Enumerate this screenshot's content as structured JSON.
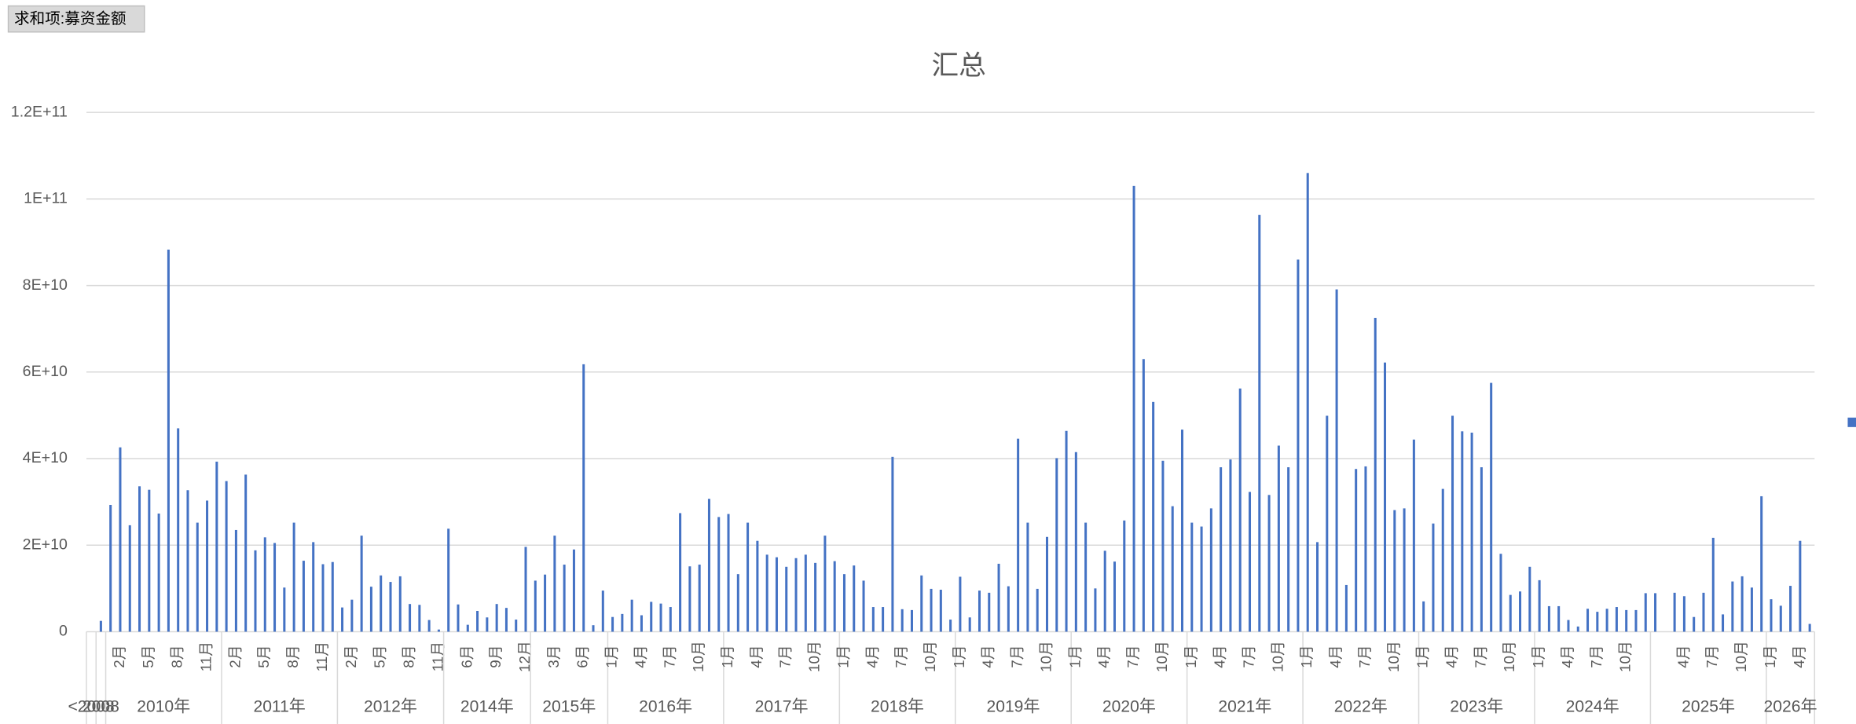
{
  "pivot_button": "求和项:募资金额",
  "chart_data": {
    "type": "bar",
    "title": "汇总",
    "color": "#4472c4",
    "grid": true,
    "ylim": [
      0,
      120000000000.0
    ],
    "yticks": [
      0,
      {
        "value": 20000000000.0,
        "label": "2E+10"
      },
      {
        "value": 40000000000.0,
        "label": "4E+10"
      },
      {
        "value": 60000000000.0,
        "label": "6E+10"
      },
      {
        "value": 80000000000.0,
        "label": "8E+10"
      },
      {
        "value": 100000000000.0,
        "label": "1E+11"
      },
      {
        "value": 120000000000.0,
        "label": "1.2E+11"
      }
    ],
    "groups": [
      {
        "label": "<2008",
        "categories": [
          null
        ],
        "values": [
          0
        ]
      },
      {
        "label": "2008",
        "categories": [
          null
        ],
        "values": [
          2500000000.0
        ]
      },
      {
        "label": "2010年",
        "categories": [
          null,
          "2月",
          null,
          null,
          "5月",
          null,
          null,
          "8月",
          null,
          null,
          "11月",
          null
        ],
        "values": [
          29300000000.0,
          42600000000.0,
          24600000000.0,
          33600000000.0,
          32800000000.0,
          27300000000.0,
          88300000000.0,
          47000000000.0,
          32700000000.0,
          25200000000.0,
          30300000000.0,
          39300000000.0
        ]
      },
      {
        "label": "2011年",
        "categories": [
          null,
          "2月",
          null,
          null,
          "5月",
          null,
          null,
          "8月",
          null,
          null,
          "11月",
          null
        ],
        "values": [
          34800000000.0,
          23500000000.0,
          36300000000.0,
          18800000000.0,
          21800000000.0,
          20500000000.0,
          10200000000.0,
          25200000000.0,
          16400000000.0,
          20700000000.0,
          15600000000.0,
          16100000000.0
        ]
      },
      {
        "label": "2012年",
        "categories": [
          null,
          "2月",
          null,
          null,
          "5月",
          null,
          null,
          "8月",
          null,
          null,
          "11月"
        ],
        "values": [
          5600000000.0,
          7400000000.0,
          22200000000.0,
          10400000000.0,
          13000000000.0,
          11500000000.0,
          12800000000.0,
          6400000000.0,
          6200000000.0,
          2700000000.0,
          500000000.0
        ]
      },
      {
        "label": "2014年",
        "categories": [
          null,
          null,
          "6月",
          null,
          null,
          "9月",
          null,
          null,
          "12月"
        ],
        "values": [
          23800000000.0,
          6300000000.0,
          1600000000.0,
          4800000000.0,
          3300000000.0,
          6400000000.0,
          5500000000.0,
          2800000000.0,
          19600000000.0
        ]
      },
      {
        "label": "2015年",
        "categories": [
          null,
          null,
          "3月",
          null,
          null,
          "6月",
          null,
          null
        ],
        "values": [
          11800000000.0,
          13200000000.0,
          22200000000.0,
          15500000000.0,
          19000000000.0,
          61800000000.0,
          1500000000.0,
          9500000000.0
        ]
      },
      {
        "label": "2016年",
        "categories": [
          "1月",
          null,
          null,
          "4月",
          null,
          null,
          "7月",
          null,
          null,
          "10月",
          null,
          null
        ],
        "values": [
          3400000000.0,
          4100000000.0,
          7400000000.0,
          3800000000.0,
          6900000000.0,
          6500000000.0,
          5700000000.0,
          27400000000.0,
          15100000000.0,
          15500000000.0,
          30700000000.0,
          26500000000.0
        ]
      },
      {
        "label": "2017年",
        "categories": [
          "1月",
          null,
          null,
          "4月",
          null,
          null,
          "7月",
          null,
          null,
          "10月",
          null,
          null
        ],
        "values": [
          27200000000.0,
          13300000000.0,
          25200000000.0,
          21000000000.0,
          17800000000.0,
          17200000000.0,
          15000000000.0,
          17000000000.0,
          17800000000.0,
          15900000000.0,
          22200000000.0,
          16300000000.0
        ]
      },
      {
        "label": "2018年",
        "categories": [
          "1月",
          null,
          null,
          "4月",
          null,
          null,
          "7月",
          null,
          null,
          "10月",
          null,
          null
        ],
        "values": [
          13300000000.0,
          15300000000.0,
          11800000000.0,
          5700000000.0,
          5700000000.0,
          40400000000.0,
          5200000000.0,
          5000000000.0,
          13000000000.0,
          9900000000.0,
          9700000000.0,
          2800000000.0
        ]
      },
      {
        "label": "2019年",
        "categories": [
          "1月",
          null,
          null,
          "4月",
          null,
          null,
          "7月",
          null,
          null,
          "10月",
          null,
          null
        ],
        "values": [
          12700000000.0,
          3300000000.0,
          9500000000.0,
          9000000000.0,
          15700000000.0,
          10500000000.0,
          44600000000.0,
          25200000000.0,
          9900000000.0,
          21900000000.0,
          40100000000.0,
          46400000000.0
        ]
      },
      {
        "label": "2020年",
        "categories": [
          "1月",
          null,
          null,
          "4月",
          null,
          null,
          "7月",
          null,
          null,
          "10月",
          null,
          null
        ],
        "values": [
          41500000000.0,
          25200000000.0,
          10000000000.0,
          18700000000.0,
          16200000000.0,
          25700000000.0,
          103000000000.0,
          63000000000.0,
          53100000000.0,
          39500000000.0,
          29000000000.0,
          46700000000.0
        ]
      },
      {
        "label": "2021年",
        "categories": [
          "1月",
          null,
          null,
          "4月",
          null,
          null,
          "7月",
          null,
          null,
          "10月",
          null,
          null
        ],
        "values": [
          25200000000.0,
          24300000000.0,
          28500000000.0,
          38000000000.0,
          39800000000.0,
          56200000000.0,
          32300000000.0,
          96300000000.0,
          31600000000.0,
          43000000000.0,
          38000000000.0,
          86000000000.0
        ]
      },
      {
        "label": "2022年",
        "categories": [
          "1月",
          null,
          null,
          "4月",
          null,
          null,
          "7月",
          null,
          null,
          "10月",
          null,
          null
        ],
        "values": [
          106000000000.0,
          20700000000.0,
          49900000000.0,
          79100000000.0,
          10800000000.0,
          37600000000.0,
          38200000000.0,
          72500000000.0,
          62200000000.0,
          28100000000.0,
          28500000000.0,
          44400000000.0
        ]
      },
      {
        "label": "2023年",
        "categories": [
          "1月",
          null,
          null,
          "4月",
          null,
          null,
          "7月",
          null,
          null,
          "10月",
          null,
          null
        ],
        "values": [
          7000000000.0,
          25000000000.0,
          33000000000.0,
          49900000000.0,
          46300000000.0,
          46000000000.0,
          38000000000.0,
          57500000000.0,
          18000000000.0,
          8500000000.0,
          9300000000.0,
          15000000000.0
        ]
      },
      {
        "label": "2024年",
        "categories": [
          "1月",
          null,
          null,
          "4月",
          null,
          null,
          "7月",
          null,
          null,
          "10月",
          null,
          null
        ],
        "values": [
          11900000000.0,
          5900000000.0,
          5900000000.0,
          2700000000.0,
          1200000000.0,
          5300000000.0,
          4600000000.0,
          5300000000.0,
          5700000000.0,
          5000000000.0,
          5000000000.0,
          8900000000.0
        ]
      },
      {
        "label": "2025年",
        "categories": [
          null,
          null,
          null,
          "4月",
          null,
          null,
          "7月",
          null,
          null,
          "10月",
          null,
          null
        ],
        "values": [
          8900000000.0,
          0,
          9000000000.0,
          8200000000.0,
          3400000000.0,
          9000000000.0,
          21700000000.0,
          4000000000.0,
          11600000000.0,
          12800000000.0,
          10200000000.0,
          31300000000.0
        ]
      },
      {
        "label": "2026年",
        "categories": [
          "1月",
          null,
          null,
          "4月",
          null
        ],
        "values": [
          7500000000.0,
          6000000000.0,
          10600000000.0,
          21000000000.0,
          1800000000.0
        ]
      }
    ]
  }
}
